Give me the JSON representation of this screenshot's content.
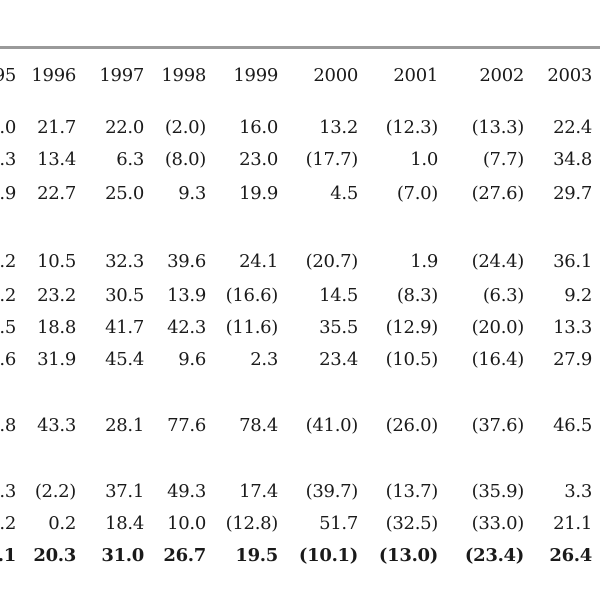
{
  "header": [
    "95",
    "1996",
    "1997",
    "1998",
    "1999",
    "2000",
    "2001",
    "2002",
    "2003"
  ],
  "rows": [
    {
      "bold": false,
      "cells": [
        ".0",
        "21.7",
        "22.0",
        "(2.0)",
        "16.0",
        "13.2",
        "(12.3)",
        "(13.3)",
        "22.4"
      ]
    },
    {
      "bold": false,
      "cells": [
        ".3",
        "13.4",
        "6.3",
        "(8.0)",
        "23.0",
        "(17.7)",
        "1.0",
        "(7.7)",
        "34.8"
      ]
    },
    {
      "bold": false,
      "cells": [
        ".9",
        "22.7",
        "25.0",
        "9.3",
        "19.9",
        "4.5",
        "(7.0)",
        "(27.6)",
        "29.7"
      ]
    },
    {
      "bold": false,
      "cells": [
        ".2",
        "10.5",
        "32.3",
        "39.6",
        "24.1",
        "(20.7)",
        "1.9",
        "(24.4)",
        "36.1"
      ]
    },
    {
      "bold": false,
      "cells": [
        ".2",
        "23.2",
        "30.5",
        "13.9",
        "(16.6)",
        "14.5",
        "(8.3)",
        "(6.3)",
        "9.2"
      ]
    },
    {
      "bold": false,
      "cells": [
        ".5",
        "18.8",
        "41.7",
        "42.3",
        "(11.6)",
        "35.5",
        "(12.9)",
        "(20.0)",
        "13.3"
      ]
    },
    {
      "bold": false,
      "cells": [
        ".6",
        "31.9",
        "45.4",
        "9.6",
        "2.3",
        "23.4",
        "(10.5)",
        "(16.4)",
        "27.9"
      ]
    },
    {
      "bold": false,
      "cells": [
        ".8",
        "43.3",
        "28.1",
        "77.6",
        "78.4",
        "(41.0)",
        "(26.0)",
        "(37.6)",
        "46.5"
      ]
    },
    {
      "bold": false,
      "cells": [
        ".3",
        "(2.2)",
        "37.1",
        "49.3",
        "17.4",
        "(39.7)",
        "(13.7)",
        "(35.9)",
        "3.3"
      ]
    },
    {
      "bold": false,
      "cells": [
        ".2",
        "0.2",
        "18.4",
        "10.0",
        "(12.8)",
        "51.7",
        "(32.5)",
        "(33.0)",
        "21.1"
      ]
    },
    {
      "bold": true,
      "cells": [
        ".1",
        "20.3",
        "31.0",
        "26.7",
        "19.5",
        "(10.1)",
        "(13.0)",
        "(23.4)",
        "26.4"
      ]
    }
  ]
}
